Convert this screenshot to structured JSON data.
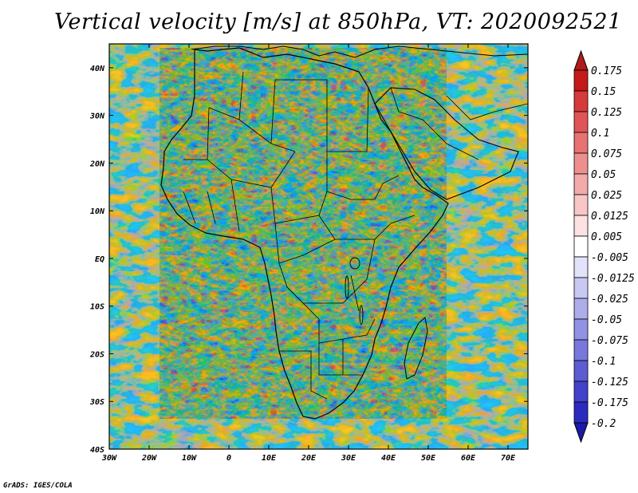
{
  "title": "Vertical velocity [m/s] at 850hPa, VT: 2020092521",
  "footer": "GrADS: IGES/COLA",
  "map": {
    "variable": "Vertical velocity",
    "units": "m/s",
    "level": "850hPa",
    "valid_time": "2020092521",
    "lon_range": [
      -30,
      75
    ],
    "lat_range": [
      -40,
      45
    ],
    "lat_labels": [
      "40N",
      "30N",
      "20N",
      "10N",
      "EQ",
      "10S",
      "20S",
      "30S",
      "40S"
    ],
    "lat_values": [
      40,
      30,
      20,
      10,
      0,
      -10,
      -20,
      -30,
      -40
    ],
    "lon_labels": [
      "30W",
      "20W",
      "10W",
      "0",
      "10E",
      "20E",
      "30E",
      "40E",
      "50E",
      "60E",
      "70E"
    ],
    "lon_values": [
      -30,
      -20,
      -10,
      0,
      10,
      20,
      30,
      40,
      50,
      60,
      70
    ]
  },
  "colorbar": {
    "labels": [
      "0.175",
      "0.15",
      "0.125",
      "0.1",
      "0.075",
      "0.05",
      "0.025",
      "0.0125",
      "0.005",
      "-0.005",
      "-0.0125",
      "-0.025",
      "-0.05",
      "-0.075",
      "-0.1",
      "-0.125",
      "-0.175",
      "-0.2"
    ],
    "colors": [
      "#c41a1a",
      "#d73a3a",
      "#e05656",
      "#e87272",
      "#ee8f8f",
      "#f3aaaa",
      "#f8c6c6",
      "#fce2e2",
      "#ffffff",
      "#e2e2fa",
      "#c8c8f3",
      "#adadec",
      "#9292e4",
      "#7777dc",
      "#5c5cd3",
      "#4242ca",
      "#2b2bbf",
      "#1a1ab0"
    ],
    "top_color": "#b01c1c",
    "bottom_color": "#1a1aa6"
  }
}
